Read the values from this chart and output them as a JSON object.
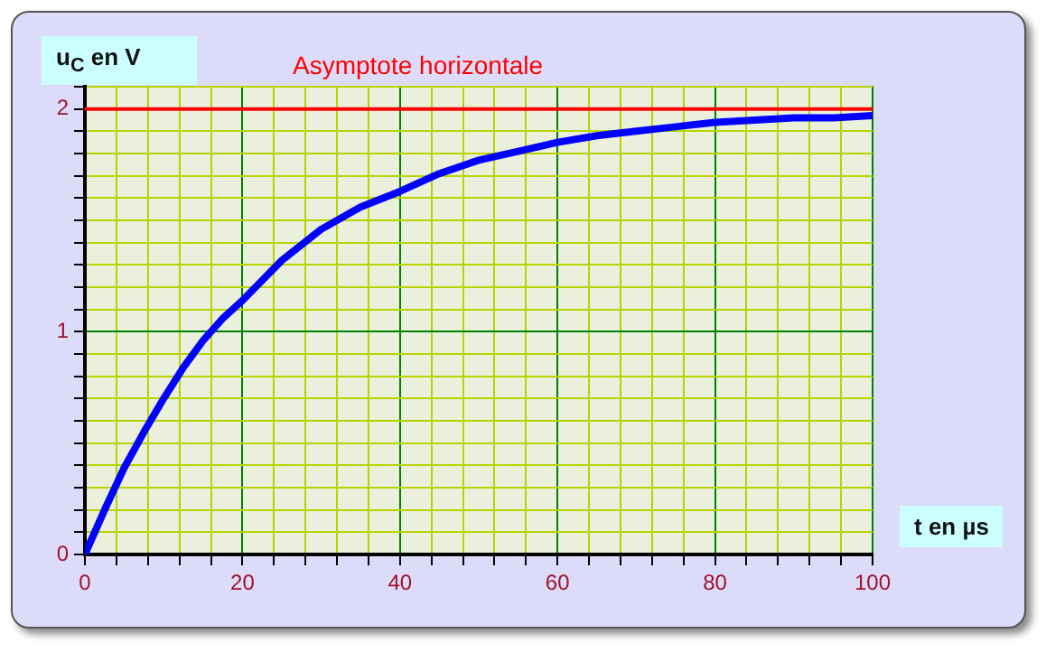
{
  "chart_data": {
    "type": "line",
    "xlabel": "t en µs",
    "ylabel": "u$_{C}$ en V",
    "series": [
      {
        "color": "#0000ff",
        "x": [
          0,
          2.5,
          5,
          7.5,
          10,
          12.5,
          15,
          17.5,
          20,
          25,
          30,
          35,
          40,
          45,
          50,
          55,
          60,
          65,
          70,
          75,
          80,
          85,
          90,
          95,
          100
        ],
        "values": [
          0,
          0.2,
          0.39,
          0.55,
          0.7,
          0.84,
          0.96,
          1.06,
          1.14,
          1.32,
          1.46,
          1.56,
          1.63,
          1.71,
          1.77,
          1.81,
          1.85,
          1.88,
          1.9,
          1.92,
          1.94,
          1.95,
          1.96,
          1.96,
          1.97
        ]
      }
    ],
    "xlim": [
      0,
      100
    ],
    "xticks": [
      0,
      {
        "value": 4,
        "label": null
      },
      {
        "value": 8,
        "label": null
      },
      {
        "value": 12,
        "label": null
      },
      {
        "value": 16,
        "label": null
      },
      20,
      {
        "value": 24,
        "label": null
      },
      {
        "value": 28,
        "label": null
      },
      {
        "value": 32,
        "label": null
      },
      {
        "value": 36,
        "label": null
      },
      40,
      {
        "value": 44,
        "label": null
      },
      {
        "value": 48,
        "label": null
      },
      {
        "value": 52,
        "label": null
      },
      {
        "value": 56,
        "label": null
      },
      60,
      {
        "value": 64,
        "label": null
      },
      {
        "value": 68,
        "label": null
      },
      {
        "value": 72,
        "label": null
      },
      {
        "value": 76,
        "label": null
      },
      80,
      {
        "value": 84,
        "label": null
      },
      {
        "value": 88,
        "label": null
      },
      {
        "value": 92,
        "label": null
      },
      {
        "value": 96,
        "label": null
      },
      100
    ],
    "ylim": [
      0,
      2.1
    ],
    "yticks": [
      0,
      {
        "value": 0.1,
        "label": null
      },
      {
        "value": 0.2,
        "label": null
      },
      {
        "value": 0.3,
        "label": null
      },
      {
        "value": 0.4,
        "label": null
      },
      {
        "value": 0.5,
        "label": null
      },
      {
        "value": 0.6,
        "label": null
      },
      {
        "value": 0.7,
        "label": null
      },
      {
        "value": 0.8,
        "label": null
      },
      {
        "value": 0.9,
        "label": null
      },
      1,
      {
        "value": 1.1,
        "label": null
      },
      {
        "value": 1.2,
        "label": null
      },
      {
        "value": 1.3,
        "label": null
      },
      {
        "value": 1.4,
        "label": null
      },
      {
        "value": 1.5,
        "label": null
      },
      {
        "value": 1.6,
        "label": null
      },
      {
        "value": 1.7,
        "label": null
      },
      {
        "value": 1.8,
        "label": null
      },
      {
        "value": 1.9,
        "label": null
      },
      2,
      {
        "value": 2.1,
        "label": null
      }
    ],
    "ref_lines": [
      {
        "axis": "y",
        "value": 2,
        "label": "Asymptote horizontale",
        "color": "#ff0000"
      }
    ],
    "grid": true,
    "legend": false,
    "marker": "none",
    "line_style": "solid"
  }
}
